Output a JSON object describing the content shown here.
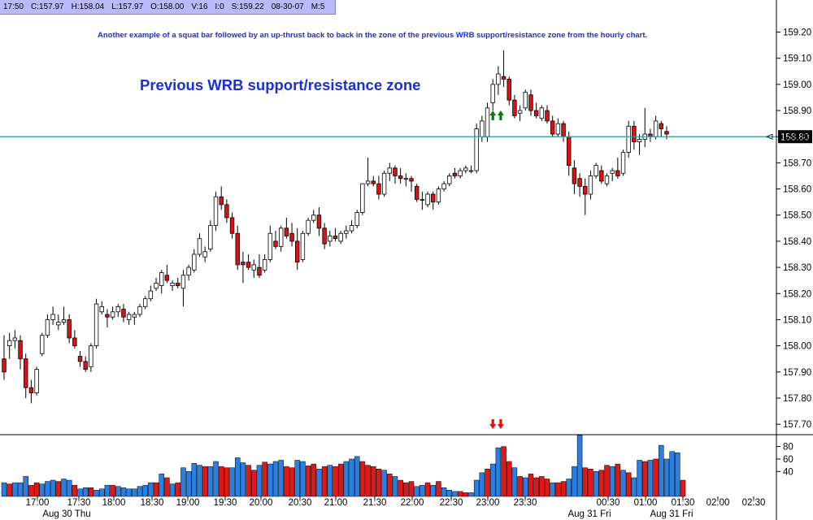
{
  "info_bar": {
    "time": "17:50",
    "close": "C:157.97",
    "high": "H:158.04",
    "low": "L:157.97",
    "open": "O:158.00",
    "volume": "V:16",
    "interest": "I:0",
    "s": "S:159.22",
    "date": "08-30-07",
    "interval": "M:5"
  },
  "annotation": "Another example of a squat bar followed by an up-thrust back to back in the zone of the previous WRB support/resistance zone from the hourly chart.",
  "zone_label": "Previous WRB support/resistance zone",
  "colors": {
    "up_body": "#ffffff",
    "down_body": "#e01010",
    "wick": "#000000",
    "level_line": "#2e9c9c",
    "volume_up": "#2b7fe0",
    "volume_down": "#e01818",
    "up_arrow": "#0a7a0a",
    "down_arrow": "#e01010",
    "text_blue": "#1b2fd6"
  },
  "chart_data": [
    {
      "type": "candlestick",
      "ylim": [
        157.66,
        159.27
      ],
      "y_ticks": [
        "159.20",
        "159.10",
        "159.00",
        "158.90",
        "158.80",
        "158.70",
        "158.60",
        "158.50",
        "158.40",
        "158.30",
        "158.20",
        "158.10",
        "158.00",
        "157.90",
        "157.80",
        "157.70"
      ],
      "x_tick_labels": [
        "17:00",
        "17:30",
        "18:00",
        "18:30",
        "19:00",
        "19:30",
        "20:00",
        "20:30",
        "21:00",
        "21:30",
        "22:00",
        "22:30",
        "23:00",
        "23:30",
        "00:30",
        "01:00",
        "01:30",
        "02:00",
        "02:30"
      ],
      "date_labels": [
        "Aug 30 Thu",
        "Aug 31 Fri",
        "Aug 31 Fri"
      ],
      "level": {
        "value": 158.8,
        "label": "158.80"
      },
      "ohlc": [
        [
          157.95,
          158.04,
          157.87,
          157.9
        ],
        [
          158.0,
          158.05,
          157.95,
          158.02
        ],
        [
          158.02,
          158.06,
          157.99,
          158.03
        ],
        [
          158.02,
          158.04,
          157.91,
          157.95
        ],
        [
          157.95,
          157.97,
          157.8,
          157.84
        ],
        [
          157.84,
          157.87,
          157.78,
          157.82
        ],
        [
          157.82,
          157.92,
          157.81,
          157.91
        ],
        [
          157.97,
          158.05,
          157.96,
          158.04
        ],
        [
          158.04,
          158.12,
          158.03,
          158.1
        ],
        [
          158.1,
          158.15,
          158.08,
          158.12
        ],
        [
          158.08,
          158.12,
          158.06,
          158.09
        ],
        [
          158.09,
          158.15,
          158.08,
          158.1
        ],
        [
          158.1,
          158.12,
          158.01,
          158.03
        ],
        [
          158.03,
          158.06,
          157.99,
          158.0
        ],
        [
          157.96,
          157.98,
          157.92,
          157.94
        ],
        [
          157.94,
          157.96,
          157.9,
          157.91
        ],
        [
          157.92,
          158.01,
          157.9,
          158.0
        ],
        [
          158.0,
          158.18,
          157.99,
          158.16
        ],
        [
          158.13,
          158.17,
          158.12,
          158.15
        ],
        [
          158.12,
          158.14,
          158.07,
          158.11
        ],
        [
          158.11,
          158.15,
          158.1,
          158.13
        ],
        [
          158.13,
          158.16,
          158.11,
          158.15
        ],
        [
          158.14,
          158.16,
          158.09,
          158.11
        ],
        [
          158.1,
          158.13,
          158.08,
          158.12
        ],
        [
          158.11,
          158.13,
          158.08,
          158.12
        ],
        [
          158.12,
          158.16,
          158.11,
          158.15
        ],
        [
          158.15,
          158.19,
          158.14,
          158.18
        ],
        [
          158.18,
          158.23,
          158.17,
          158.21
        ],
        [
          158.22,
          158.26,
          158.21,
          158.24
        ],
        [
          158.23,
          158.29,
          158.2,
          158.28
        ],
        [
          158.27,
          158.31,
          158.24,
          158.25
        ],
        [
          158.23,
          158.25,
          158.21,
          158.24
        ],
        [
          158.24,
          158.26,
          158.22,
          158.23
        ],
        [
          158.22,
          158.29,
          158.15,
          158.27
        ],
        [
          158.27,
          158.31,
          158.25,
          158.3
        ],
        [
          158.29,
          158.37,
          158.28,
          158.35
        ],
        [
          158.35,
          158.43,
          158.34,
          158.41
        ],
        [
          158.34,
          158.38,
          158.32,
          158.36
        ],
        [
          158.37,
          158.48,
          158.36,
          158.46
        ],
        [
          158.46,
          158.59,
          158.44,
          158.57
        ],
        [
          158.57,
          158.61,
          158.52,
          158.54
        ],
        [
          158.54,
          158.56,
          158.47,
          158.49
        ],
        [
          158.49,
          158.51,
          158.41,
          158.43
        ],
        [
          158.43,
          158.46,
          158.29,
          158.31
        ],
        [
          158.32,
          158.36,
          158.24,
          158.31
        ],
        [
          158.32,
          158.35,
          158.29,
          158.3
        ],
        [
          158.29,
          158.33,
          158.26,
          158.31
        ],
        [
          158.3,
          158.35,
          158.26,
          158.27
        ],
        [
          158.29,
          158.35,
          158.28,
          158.33
        ],
        [
          158.33,
          158.46,
          158.32,
          158.43
        ],
        [
          158.4,
          158.44,
          158.37,
          158.38
        ],
        [
          158.38,
          158.46,
          158.36,
          158.45
        ],
        [
          158.45,
          158.49,
          158.41,
          158.42
        ],
        [
          158.43,
          158.47,
          158.38,
          158.4
        ],
        [
          158.4,
          158.45,
          158.29,
          158.32
        ],
        [
          158.33,
          158.44,
          158.32,
          158.43
        ],
        [
          158.43,
          158.49,
          158.42,
          158.48
        ],
        [
          158.48,
          158.52,
          158.47,
          158.5
        ],
        [
          158.5,
          158.53,
          158.42,
          158.45
        ],
        [
          158.45,
          158.47,
          158.37,
          158.39
        ],
        [
          158.4,
          158.44,
          158.38,
          158.42
        ],
        [
          158.42,
          158.45,
          158.4,
          158.41
        ],
        [
          158.4,
          158.44,
          158.39,
          158.43
        ],
        [
          158.43,
          158.46,
          158.41,
          158.44
        ],
        [
          158.44,
          158.48,
          158.43,
          158.46
        ],
        [
          158.46,
          158.52,
          158.45,
          158.51
        ],
        [
          158.51,
          158.62,
          158.5,
          158.62
        ],
        [
          158.62,
          158.72,
          158.61,
          158.63
        ],
        [
          158.63,
          158.65,
          158.61,
          158.62
        ],
        [
          158.62,
          158.65,
          158.56,
          158.58
        ],
        [
          158.58,
          158.67,
          158.57,
          158.66
        ],
        [
          158.66,
          158.7,
          158.63,
          158.68
        ],
        [
          158.68,
          158.69,
          158.62,
          158.65
        ],
        [
          158.65,
          158.68,
          158.62,
          158.64
        ],
        [
          158.64,
          158.66,
          158.61,
          158.64
        ],
        [
          158.64,
          158.65,
          158.59,
          158.63
        ],
        [
          158.61,
          158.62,
          158.55,
          158.56
        ],
        [
          158.56,
          158.59,
          158.52,
          158.56
        ],
        [
          158.54,
          158.59,
          158.53,
          158.58
        ],
        [
          158.58,
          158.59,
          158.52,
          158.55
        ],
        [
          158.55,
          158.61,
          158.54,
          158.6
        ],
        [
          158.6,
          158.63,
          158.59,
          158.62
        ],
        [
          158.62,
          158.66,
          158.61,
          158.65
        ],
        [
          158.66,
          158.68,
          158.64,
          158.65
        ],
        [
          158.65,
          158.68,
          158.64,
          158.67
        ],
        [
          158.67,
          158.69,
          158.66,
          158.68
        ],
        [
          158.67,
          158.69,
          158.66,
          158.67
        ],
        [
          158.67,
          158.85,
          158.66,
          158.83
        ],
        [
          158.8,
          158.88,
          158.78,
          158.86
        ],
        [
          158.8,
          158.93,
          158.78,
          158.91
        ],
        [
          158.93,
          159.02,
          158.9,
          159.0
        ],
        [
          159.0,
          159.07,
          158.96,
          159.04
        ],
        [
          159.03,
          159.13,
          158.99,
          159.02
        ],
        [
          159.02,
          159.03,
          158.92,
          158.94
        ],
        [
          158.94,
          158.96,
          158.87,
          158.88
        ],
        [
          158.89,
          158.92,
          158.86,
          158.9
        ],
        [
          158.91,
          158.98,
          158.9,
          158.97
        ],
        [
          158.96,
          158.98,
          158.88,
          158.9
        ],
        [
          158.9,
          158.93,
          158.87,
          158.88
        ],
        [
          158.87,
          158.92,
          158.86,
          158.91
        ],
        [
          158.9,
          158.92,
          158.85,
          158.86
        ],
        [
          158.86,
          158.88,
          158.8,
          158.81
        ],
        [
          158.81,
          158.87,
          158.8,
          158.85
        ],
        [
          158.85,
          158.86,
          158.78,
          158.8
        ],
        [
          158.8,
          158.82,
          158.65,
          158.69
        ],
        [
          158.68,
          158.71,
          158.58,
          158.62
        ],
        [
          158.64,
          158.66,
          158.57,
          158.61
        ],
        [
          158.61,
          158.64,
          158.5,
          158.58
        ],
        [
          158.58,
          158.67,
          158.56,
          158.65
        ],
        [
          158.65,
          158.7,
          158.64,
          158.69
        ],
        [
          158.67,
          158.69,
          158.62,
          158.63
        ],
        [
          158.62,
          158.66,
          158.61,
          158.65
        ],
        [
          158.66,
          158.68,
          158.63,
          158.67
        ],
        [
          158.67,
          158.72,
          158.64,
          158.65
        ],
        [
          158.66,
          158.75,
          158.65,
          158.74
        ],
        [
          158.74,
          158.86,
          158.72,
          158.84
        ],
        [
          158.84,
          158.86,
          158.75,
          158.78
        ],
        [
          158.78,
          158.81,
          158.73,
          158.79
        ],
        [
          158.79,
          158.91,
          158.76,
          158.81
        ],
        [
          158.81,
          158.83,
          158.78,
          158.8
        ],
        [
          158.8,
          158.88,
          158.79,
          158.86
        ],
        [
          158.85,
          158.86,
          158.8,
          158.83
        ],
        [
          158.82,
          158.84,
          158.79,
          158.81
        ]
      ],
      "volume_ylim": [
        0,
        99
      ],
      "volume_ticks": [
        "80",
        "60",
        "40"
      ],
      "volume": [
        [
          22,
          1
        ],
        [
          20,
          0
        ],
        [
          22,
          1
        ],
        [
          22,
          1
        ],
        [
          32,
          1
        ],
        [
          18,
          0
        ],
        [
          22,
          0
        ],
        [
          20,
          1
        ],
        [
          24,
          1
        ],
        [
          26,
          1
        ],
        [
          24,
          0
        ],
        [
          28,
          1
        ],
        [
          26,
          1
        ],
        [
          18,
          0
        ],
        [
          12,
          1
        ],
        [
          14,
          1
        ],
        [
          14,
          0
        ],
        [
          10,
          1
        ],
        [
          12,
          1
        ],
        [
          18,
          1
        ],
        [
          18,
          0
        ],
        [
          16,
          1
        ],
        [
          14,
          1
        ],
        [
          12,
          1
        ],
        [
          12,
          1
        ],
        [
          16,
          1
        ],
        [
          18,
          1
        ],
        [
          22,
          1
        ],
        [
          22,
          0
        ],
        [
          36,
          1
        ],
        [
          30,
          0
        ],
        [
          20,
          1
        ],
        [
          22,
          0
        ],
        [
          46,
          1
        ],
        [
          40,
          1
        ],
        [
          53,
          1
        ],
        [
          50,
          1
        ],
        [
          48,
          0
        ],
        [
          48,
          1
        ],
        [
          56,
          1
        ],
        [
          48,
          0
        ],
        [
          46,
          0
        ],
        [
          46,
          1
        ],
        [
          62,
          1
        ],
        [
          54,
          1
        ],
        [
          50,
          0
        ],
        [
          42,
          0
        ],
        [
          50,
          1
        ],
        [
          55,
          0
        ],
        [
          52,
          1
        ],
        [
          56,
          1
        ],
        [
          58,
          1
        ],
        [
          48,
          0
        ],
        [
          46,
          0
        ],
        [
          58,
          1
        ],
        [
          56,
          1
        ],
        [
          49,
          0
        ],
        [
          52,
          0
        ],
        [
          44,
          1
        ],
        [
          48,
          0
        ],
        [
          50,
          1
        ],
        [
          48,
          0
        ],
        [
          52,
          0
        ],
        [
          56,
          1
        ],
        [
          60,
          1
        ],
        [
          64,
          1
        ],
        [
          56,
          0
        ],
        [
          50,
          0
        ],
        [
          48,
          0
        ],
        [
          44,
          0
        ],
        [
          42,
          1
        ],
        [
          36,
          0
        ],
        [
          32,
          1
        ],
        [
          26,
          0
        ],
        [
          22,
          0
        ],
        [
          24,
          0
        ],
        [
          16,
          1
        ],
        [
          18,
          1
        ],
        [
          22,
          0
        ],
        [
          18,
          1
        ],
        [
          24,
          0
        ],
        [
          14,
          1
        ],
        [
          10,
          1
        ],
        [
          8,
          1
        ],
        [
          8,
          0
        ],
        [
          6,
          0
        ],
        [
          6,
          1
        ],
        [
          26,
          1
        ],
        [
          38,
          1
        ],
        [
          44,
          0
        ],
        [
          52,
          1
        ],
        [
          78,
          1
        ],
        [
          80,
          0
        ],
        [
          56,
          0
        ],
        [
          46,
          1
        ],
        [
          32,
          0
        ],
        [
          30,
          1
        ],
        [
          36,
          0
        ],
        [
          30,
          0
        ],
        [
          32,
          0
        ],
        [
          28,
          0
        ],
        [
          22,
          1
        ],
        [
          22,
          0
        ],
        [
          24,
          0
        ],
        [
          28,
          1
        ],
        [
          48,
          1
        ],
        [
          98,
          1
        ],
        [
          46,
          0
        ],
        [
          44,
          0
        ],
        [
          40,
          1
        ],
        [
          42,
          0
        ],
        [
          50,
          0
        ],
        [
          48,
          1
        ],
        [
          52,
          0
        ],
        [
          42,
          1
        ],
        [
          38,
          0
        ],
        [
          30,
          1
        ],
        [
          58,
          1
        ],
        [
          56,
          0
        ],
        [
          58,
          1
        ],
        [
          60,
          0
        ],
        [
          82,
          1
        ],
        [
          60,
          1
        ],
        [
          72,
          1
        ],
        [
          70,
          1
        ],
        [
          26,
          0
        ]
      ]
    }
  ]
}
